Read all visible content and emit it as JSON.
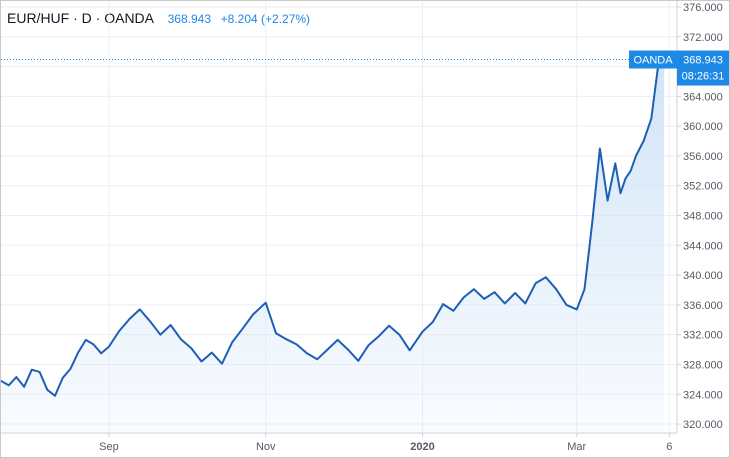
{
  "legend": {
    "symbol": "EUR/HUF · D · OANDA",
    "last": "368.943",
    "change": "+8.204 (+2.27%)"
  },
  "price_tag": {
    "source": "OANDA",
    "value": "368.943",
    "countdown": "08:26:31"
  },
  "colors": {
    "line": "#1e5fb4",
    "fill_top": "#cfe3f7",
    "grid": "#eceef2",
    "axis": "#cfd2d8",
    "text": "#555b66",
    "tag": "#1e88e5"
  },
  "chart_data": {
    "type": "area",
    "title": "EUR/HUF · D · OANDA",
    "xlabel": "",
    "ylabel": "",
    "ylim": [
      318.8,
      376.8
    ],
    "xlim": [
      "2019-07-21",
      "2020-04-09"
    ],
    "x_ticks": [
      {
        "date": "2019-09-01",
        "label": "Sep"
      },
      {
        "date": "2019-11-01",
        "label": "Nov"
      },
      {
        "date": "2020-01-01",
        "label": "2020"
      },
      {
        "date": "2020-03-01",
        "label": "Mar"
      },
      {
        "date": "2020-04-06",
        "label": "6"
      }
    ],
    "y_ticks": [
      320,
      324,
      328,
      332,
      336,
      340,
      344,
      348,
      352,
      356,
      360,
      364,
      368,
      372,
      376
    ],
    "grid": true,
    "series": [
      {
        "x": [
          "2019-07-21",
          "2019-07-24",
          "2019-07-27",
          "2019-07-30",
          "2019-08-02",
          "2019-08-05",
          "2019-08-08",
          "2019-08-11",
          "2019-08-14",
          "2019-08-17",
          "2019-08-20",
          "2019-08-23",
          "2019-08-26",
          "2019-08-29",
          "2019-09-01",
          "2019-09-05",
          "2019-09-09",
          "2019-09-13",
          "2019-09-17",
          "2019-09-21",
          "2019-09-25",
          "2019-09-29",
          "2019-10-03",
          "2019-10-07",
          "2019-10-11",
          "2019-10-15",
          "2019-10-19",
          "2019-10-23",
          "2019-10-27",
          "2019-11-01",
          "2019-11-05",
          "2019-11-09",
          "2019-11-13",
          "2019-11-17",
          "2019-11-21",
          "2019-11-25",
          "2019-11-29",
          "2019-12-03",
          "2019-12-07",
          "2019-12-11",
          "2019-12-15",
          "2019-12-19",
          "2019-12-23",
          "2019-12-27",
          "2020-01-01",
          "2020-01-05",
          "2020-01-09",
          "2020-01-13",
          "2020-01-17",
          "2020-01-21",
          "2020-01-25",
          "2020-01-29",
          "2020-02-02",
          "2020-02-06",
          "2020-02-10",
          "2020-02-14",
          "2020-02-18",
          "2020-02-22",
          "2020-02-26",
          "2020-03-01",
          "2020-03-04",
          "2020-03-07",
          "2020-03-10",
          "2020-03-13",
          "2020-03-16",
          "2020-03-18",
          "2020-03-20",
          "2020-03-22",
          "2020-03-24",
          "2020-03-27",
          "2020-03-30",
          "2020-04-02",
          "2020-04-04"
        ],
        "y": [
          325.8,
          325.2,
          326.3,
          325.0,
          327.3,
          327.0,
          324.6,
          323.8,
          326.2,
          327.4,
          329.6,
          331.3,
          330.7,
          329.5,
          330.4,
          332.5,
          334.1,
          335.4,
          333.8,
          332.0,
          333.3,
          331.4,
          330.2,
          328.4,
          329.6,
          328.1,
          331.0,
          332.8,
          334.7,
          336.3,
          332.2,
          331.4,
          330.7,
          329.5,
          328.7,
          330.0,
          331.3,
          330.0,
          328.5,
          330.6,
          331.8,
          333.2,
          332.0,
          329.9,
          332.4,
          333.7,
          336.1,
          335.2,
          337.0,
          338.1,
          336.8,
          337.7,
          336.2,
          337.6,
          336.2,
          338.9,
          339.7,
          338.1,
          336.0,
          335.4,
          338.1,
          347.0,
          357.0,
          350.0,
          355.0,
          351.0,
          353.0,
          354.0,
          356.0,
          358.0,
          361.0,
          369.0,
          369.0
        ]
      }
    ],
    "last_value": 368.943
  }
}
